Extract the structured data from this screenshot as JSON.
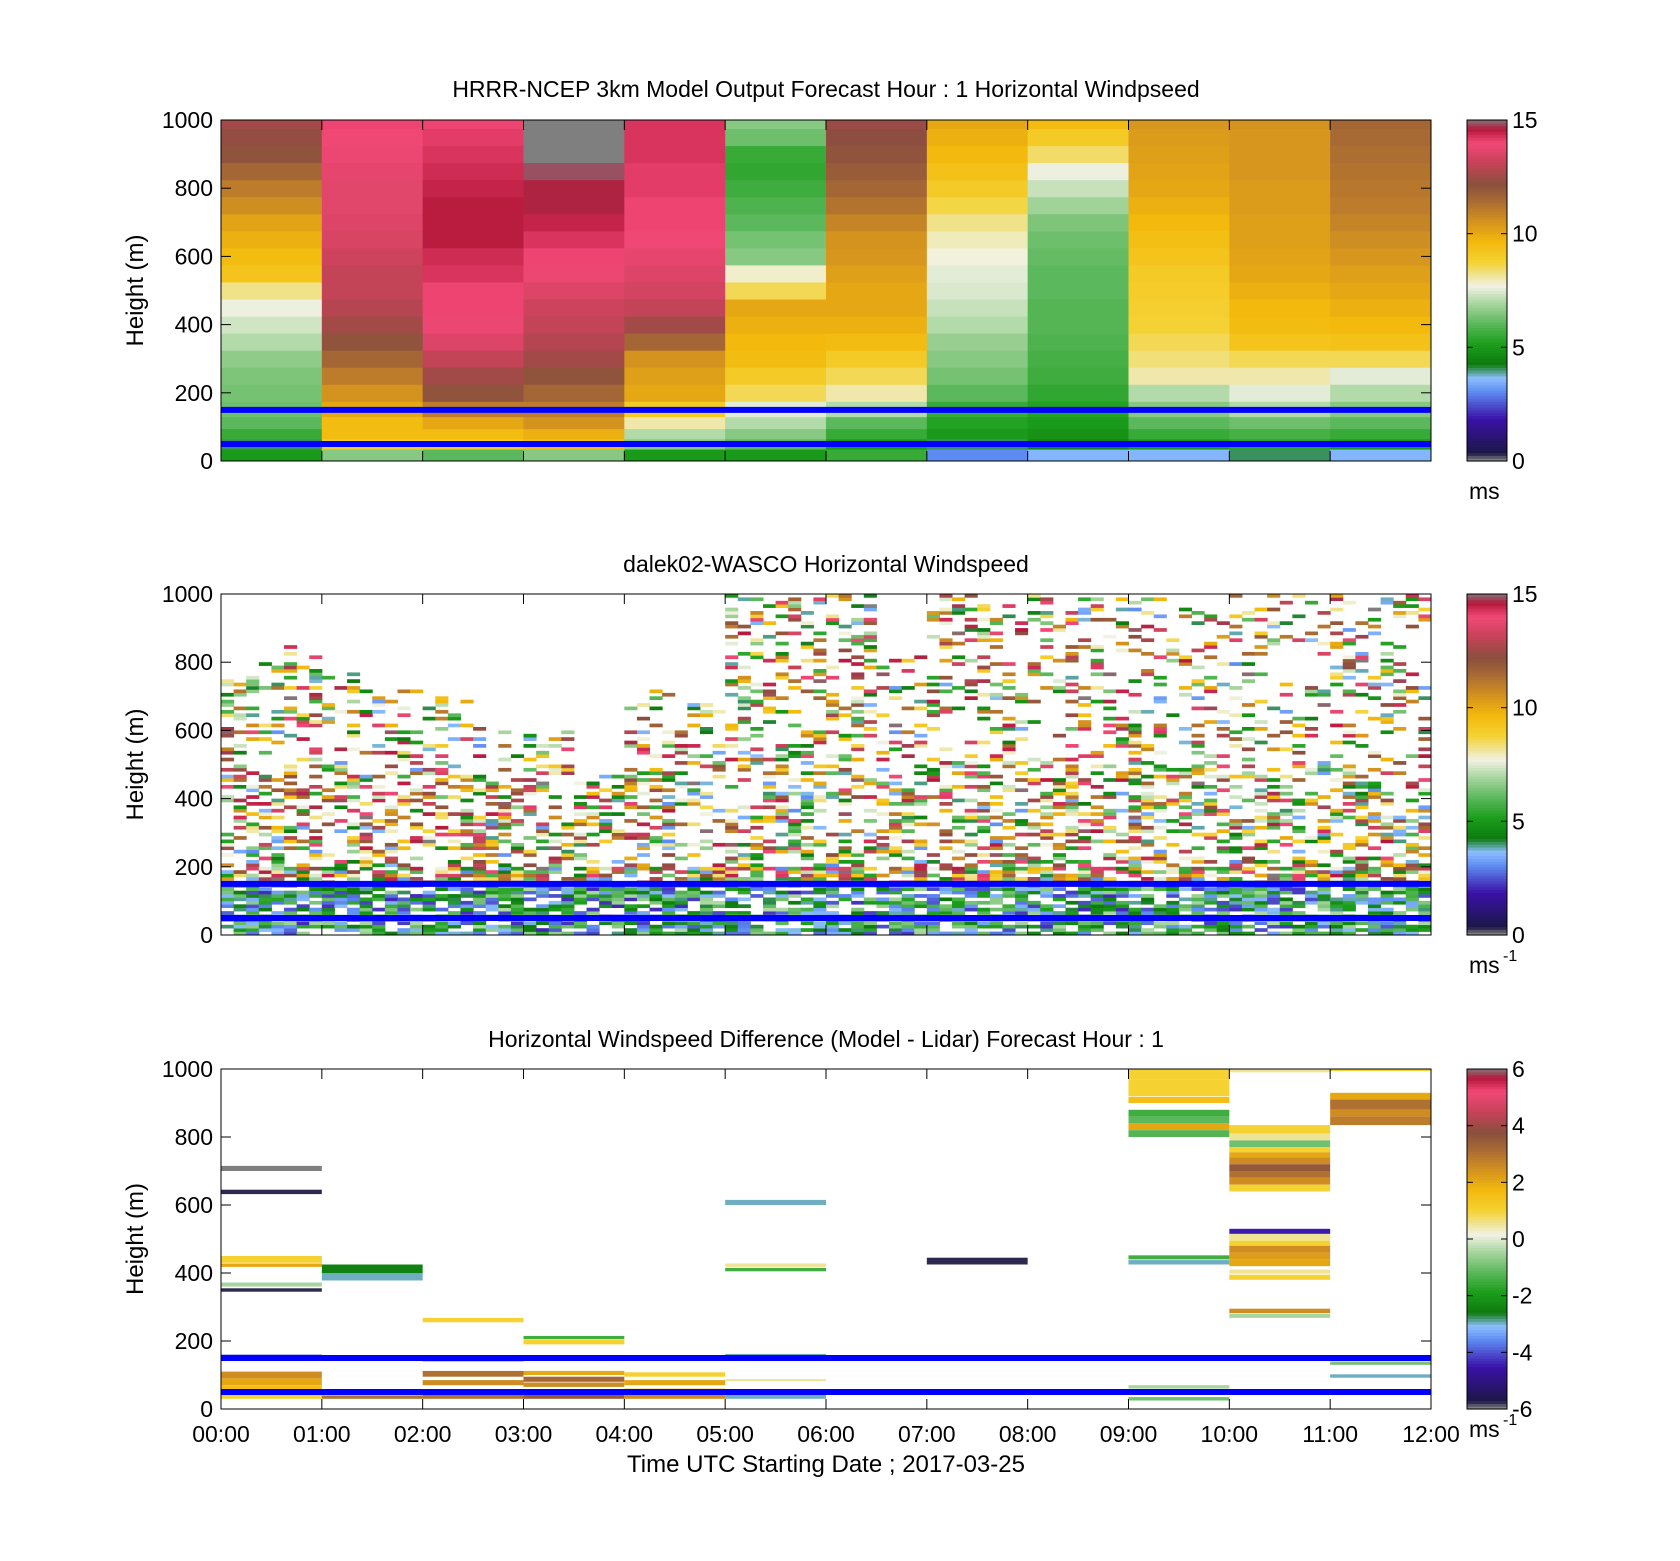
{
  "chart_data": [
    {
      "type": "heatmap",
      "title": "HRRR-NCEP 3km Model Output   Forecast Hour : 1 Horizontal Windpseed",
      "ylabel": "Height (m)",
      "xlabel": "",
      "y_ticks": [
        "0",
        "200",
        "400",
        "600",
        "800",
        "1000"
      ],
      "ylim": [
        0,
        1000
      ],
      "x_ticks": [],
      "xlim_hours": [
        0,
        12
      ],
      "reference_lines_m": [
        150,
        50
      ],
      "reference_line_color": "#0000ff",
      "colorbar": {
        "vmin": 0,
        "vmax": 15,
        "ticks": [
          "0",
          "5",
          "10",
          "15"
        ],
        "unit": "ms",
        "unit_sup": ""
      },
      "heights_m": [
        20,
        50,
        80,
        110,
        150,
        200,
        250,
        300,
        350,
        400,
        450,
        500,
        550,
        600,
        650,
        700,
        750,
        800,
        850,
        900,
        950,
        1000
      ],
      "columns": [
        {
          "hour": 0,
          "values": [
            5,
            4,
            5.5,
            6,
            6.2,
            6.3,
            6.4,
            6.6,
            7,
            7.3,
            7.6,
            8.2,
            9.2,
            9.5,
            9.8,
            10.1,
            10.6,
            11,
            11.5,
            12,
            12.3,
            12.5
          ]
        },
        {
          "hour": 1,
          "values": [
            6.5,
            9,
            9.5,
            9.5,
            10,
            10.5,
            11,
            11.5,
            12,
            12.5,
            12.8,
            13,
            13,
            13.2,
            13.4,
            13.5,
            13.6,
            13.6,
            13.7,
            13.8,
            13.9,
            14
          ]
        },
        {
          "hour": 2,
          "values": [
            6,
            9,
            9.5,
            10,
            11,
            12,
            12.5,
            13,
            13.5,
            13.8,
            14,
            14,
            14.2,
            14.3,
            14.5,
            14.5,
            14.5,
            14.4,
            14.3,
            14.2,
            14.1,
            14
          ]
        },
        {
          "hour": 3,
          "values": [
            6.5,
            9.5,
            9.8,
            10.5,
            11,
            11.5,
            12,
            12.5,
            12.8,
            13,
            13.2,
            13.5,
            13.8,
            14,
            14.2,
            14.4,
            14.6,
            14.6,
            14.8,
            15,
            15.2,
            15.3
          ]
        },
        {
          "hour": 4,
          "values": [
            5,
            6.5,
            7,
            8,
            9,
            10,
            10.2,
            10.5,
            11.5,
            12.5,
            13,
            13.3,
            13.5,
            13.7,
            13.9,
            14,
            14,
            14.1,
            14.1,
            14.2,
            14.2,
            14.2
          ]
        },
        {
          "hour": 5,
          "values": [
            5,
            6,
            6.5,
            7,
            7.5,
            8.5,
            9,
            9.5,
            9.6,
            9.8,
            10,
            8.5,
            7.8,
            6.5,
            6.3,
            6.0,
            5.8,
            5.6,
            5.4,
            5.5,
            6.2,
            6.5
          ]
        },
        {
          "hour": 6,
          "values": [
            5.5,
            5,
            5.5,
            6,
            7,
            8,
            8.5,
            9,
            9.5,
            9.8,
            10,
            10,
            10.2,
            10.4,
            10.5,
            10.8,
            11.2,
            11.5,
            11.8,
            12,
            12.2,
            12.4
          ]
        },
        {
          "hour": 7,
          "values": [
            3,
            4,
            5,
            5.2,
            5.5,
            6,
            6.3,
            6.5,
            6.7,
            7,
            7.2,
            7.4,
            7.5,
            7.7,
            7.9,
            8.2,
            8.6,
            9,
            9.3,
            9.6,
            9.8,
            10
          ]
        },
        {
          "hour": 8,
          "values": [
            3.5,
            4.5,
            4.8,
            5,
            5.2,
            5.4,
            5.6,
            5.7,
            5.8,
            5.9,
            5.9,
            6,
            6,
            6.1,
            6.2,
            6.4,
            6.8,
            7.2,
            7.6,
            8.4,
            9,
            9.5
          ]
        },
        {
          "hour": 9,
          "values": [
            3.5,
            5,
            5.5,
            6,
            6.5,
            7,
            8,
            8.3,
            8.5,
            8.7,
            8.8,
            8.9,
            9,
            9.2,
            9.4,
            9.6,
            9.8,
            10,
            10.1,
            10.2,
            10.3,
            10.4
          ]
        },
        {
          "hour": 10,
          "values": [
            4,
            5.3,
            5.7,
            6.2,
            7,
            7.5,
            8,
            8.5,
            9.2,
            9.5,
            9.6,
            9.8,
            10,
            10.1,
            10.2,
            10.2,
            10.3,
            10.3,
            10.4,
            10.4,
            10.4,
            10.5
          ]
        },
        {
          "hour": 11,
          "values": [
            3.5,
            5,
            5.5,
            6,
            6.5,
            7,
            7.5,
            8.5,
            9.3,
            9.6,
            9.8,
            10,
            10.2,
            10.4,
            10.6,
            10.8,
            11,
            11.1,
            11.2,
            11.3,
            11.4,
            11.5
          ]
        }
      ]
    },
    {
      "type": "heatmap",
      "title": "dalek02-WASCO  Horizontal Windspeed",
      "ylabel": "Height (m)",
      "xlabel": "",
      "y_ticks": [
        "0",
        "200",
        "400",
        "600",
        "800",
        "1000"
      ],
      "ylim": [
        0,
        1000
      ],
      "x_ticks": [],
      "xlim_hours": [
        0,
        12
      ],
      "reference_lines_m": [
        150,
        50
      ],
      "reference_line_color": "#0000ff",
      "colorbar": {
        "vmin": 0,
        "vmax": 15,
        "ticks": [
          "0",
          "5",
          "10",
          "15"
        ],
        "unit": "ms",
        "unit_sup": "-1"
      },
      "observation_coverage_m": [
        {
          "start_hour": 0,
          "top_m": 800,
          "value_range": [
            3,
            15
          ]
        },
        {
          "start_hour": 0.5,
          "top_m": 850,
          "value_range": [
            3,
            15
          ]
        },
        {
          "start_hour": 1,
          "top_m": 780,
          "value_range": [
            3,
            15
          ]
        },
        {
          "start_hour": 1.5,
          "top_m": 720,
          "value_range": [
            3,
            15
          ]
        },
        {
          "start_hour": 2,
          "top_m": 700,
          "value_range": [
            3,
            15
          ]
        },
        {
          "start_hour": 2.5,
          "top_m": 620,
          "value_range": [
            3,
            15
          ]
        },
        {
          "start_hour": 3,
          "top_m": 600,
          "value_range": [
            3,
            15
          ]
        },
        {
          "start_hour": 3.5,
          "top_m": 480,
          "value_range": [
            3,
            15
          ]
        },
        {
          "start_hour": 4,
          "top_m": 720,
          "value_range": [
            3,
            15
          ]
        },
        {
          "start_hour": 4.5,
          "top_m": 680,
          "value_range": [
            3,
            15
          ]
        },
        {
          "start_hour": 5,
          "top_m": 1000,
          "value_range": [
            3,
            15
          ]
        },
        {
          "start_hour": 5.5,
          "top_m": 1000,
          "value_range": [
            3,
            15
          ]
        },
        {
          "start_hour": 6,
          "top_m": 1000,
          "value_range": [
            3,
            15
          ]
        },
        {
          "start_hour": 6.5,
          "top_m": 820,
          "value_range": [
            3,
            15
          ]
        },
        {
          "start_hour": 7,
          "top_m": 1000,
          "value_range": [
            3,
            15
          ]
        },
        {
          "start_hour": 7.5,
          "top_m": 1000,
          "value_range": [
            3,
            15
          ]
        },
        {
          "start_hour": 8,
          "top_m": 1000,
          "value_range": [
            3,
            15
          ]
        },
        {
          "start_hour": 8.5,
          "top_m": 1000,
          "value_range": [
            3,
            15
          ]
        },
        {
          "start_hour": 9,
          "top_m": 1000,
          "value_range": [
            3,
            15
          ]
        },
        {
          "start_hour": 9.5,
          "top_m": 1000,
          "value_range": [
            3,
            15
          ]
        },
        {
          "start_hour": 10,
          "top_m": 1000,
          "value_range": [
            3,
            15
          ]
        },
        {
          "start_hour": 10.5,
          "top_m": 1000,
          "value_range": [
            3,
            15
          ]
        },
        {
          "start_hour": 11,
          "top_m": 1000,
          "value_range": [
            3,
            15
          ]
        },
        {
          "start_hour": 11.5,
          "top_m": 1000,
          "value_range": [
            3,
            15
          ]
        }
      ]
    },
    {
      "type": "heatmap",
      "title": "Horizontal Windspeed Difference (Model - Lidar) Forecast Hour : 1",
      "ylabel": "Height (m)",
      "xlabel": "Time UTC  Starting Date ; 2017-03-25",
      "y_ticks": [
        "0",
        "200",
        "400",
        "600",
        "800",
        "1000"
      ],
      "ylim": [
        0,
        1000
      ],
      "x_ticks": [
        "00:00",
        "01:00",
        "02:00",
        "03:00",
        "04:00",
        "05:00",
        "06:00",
        "07:00",
        "08:00",
        "09:00",
        "10:00",
        "11:00",
        "12:00"
      ],
      "xlim_hours": [
        0,
        12
      ],
      "reference_lines_m": [
        150,
        50
      ],
      "reference_line_color": "#0000ff",
      "colorbar": {
        "vmin": -6,
        "vmax": 6,
        "ticks": [
          "-6",
          "-4",
          "-2",
          "0",
          "2",
          "4",
          "6"
        ],
        "unit": "ms",
        "unit_sup": "-1"
      },
      "segments": [
        {
          "hour": 0,
          "y0": 700,
          "y1": 715,
          "v": -6
        },
        {
          "hour": 0,
          "y0": 632,
          "y1": 645,
          "v": -5.8
        },
        {
          "hour": 0,
          "y0": 430,
          "y1": 450,
          "v": 1
        },
        {
          "hour": 0,
          "y0": 418,
          "y1": 428,
          "v": 2
        },
        {
          "hour": 0,
          "y0": 360,
          "y1": 372,
          "v": -0.5
        },
        {
          "hour": 0,
          "y0": 345,
          "y1": 355,
          "v": -5.8
        },
        {
          "hour": 0,
          "y0": 150,
          "y1": 160,
          "v": -4
        },
        {
          "hour": 0,
          "y0": 90,
          "y1": 110,
          "v": 2.5
        },
        {
          "hour": 0,
          "y0": 70,
          "y1": 90,
          "v": 2
        },
        {
          "hour": 0,
          "y0": 55,
          "y1": 70,
          "v": 1.5
        },
        {
          "hour": 0,
          "y0": 30,
          "y1": 50,
          "v": 1
        },
        {
          "hour": 1,
          "y0": 400,
          "y1": 425,
          "v": -2.5
        },
        {
          "hour": 1,
          "y0": 378,
          "y1": 400,
          "v": -3
        },
        {
          "hour": 1,
          "y0": 30,
          "y1": 40,
          "v": 3
        },
        {
          "hour": 2,
          "y0": 255,
          "y1": 268,
          "v": 1
        },
        {
          "hour": 2,
          "y0": 140,
          "y1": 148,
          "v": 3
        },
        {
          "hour": 2,
          "y0": 95,
          "y1": 112,
          "v": 3
        },
        {
          "hour": 2,
          "y0": 70,
          "y1": 85,
          "v": 2.5
        },
        {
          "hour": 2,
          "y0": 30,
          "y1": 42,
          "v": 3
        },
        {
          "hour": 3,
          "y0": 205,
          "y1": 215,
          "v": -1.5
        },
        {
          "hour": 3,
          "y0": 190,
          "y1": 203,
          "v": 1
        },
        {
          "hour": 3,
          "y0": 100,
          "y1": 112,
          "v": 2
        },
        {
          "hour": 3,
          "y0": 80,
          "y1": 95,
          "v": 3.2
        },
        {
          "hour": 3,
          "y0": 65,
          "y1": 78,
          "v": 2.5
        },
        {
          "hour": 3,
          "y0": 30,
          "y1": 45,
          "v": 3.5
        },
        {
          "hour": 4,
          "y0": 95,
          "y1": 108,
          "v": 1
        },
        {
          "hour": 4,
          "y0": 70,
          "y1": 85,
          "v": 2
        },
        {
          "hour": 4,
          "y0": 45,
          "y1": 60,
          "v": 1.5
        },
        {
          "hour": 4,
          "y0": 30,
          "y1": 42,
          "v": 2.5
        },
        {
          "hour": 5,
          "y0": 600,
          "y1": 615,
          "v": -3
        },
        {
          "hour": 5,
          "y0": 418,
          "y1": 428,
          "v": 0.5
        },
        {
          "hour": 5,
          "y0": 405,
          "y1": 415,
          "v": -1.5
        },
        {
          "hour": 5,
          "y0": 155,
          "y1": 162,
          "v": -3
        },
        {
          "hour": 5,
          "y0": 82,
          "y1": 88,
          "v": 0.5
        },
        {
          "hour": 5,
          "y0": 30,
          "y1": 45,
          "v": -3
        },
        {
          "hour": 7,
          "y0": 425,
          "y1": 445,
          "v": -5.8
        },
        {
          "hour": 9,
          "y0": 970,
          "y1": 1000,
          "v": 1
        },
        {
          "hour": 9,
          "y0": 920,
          "y1": 970,
          "v": 1
        },
        {
          "hour": 9,
          "y0": 900,
          "y1": 918,
          "v": 1.5
        },
        {
          "hour": 9,
          "y0": 860,
          "y1": 880,
          "v": -1.5
        },
        {
          "hour": 9,
          "y0": 840,
          "y1": 860,
          "v": -1.2
        },
        {
          "hour": 9,
          "y0": 820,
          "y1": 840,
          "v": 2
        },
        {
          "hour": 9,
          "y0": 800,
          "y1": 820,
          "v": -1.3
        },
        {
          "hour": 9,
          "y0": 440,
          "y1": 452,
          "v": -1.5
        },
        {
          "hour": 9,
          "y0": 425,
          "y1": 438,
          "v": -3
        },
        {
          "hour": 9,
          "y0": 60,
          "y1": 70,
          "v": -0.5
        },
        {
          "hour": 9,
          "y0": 25,
          "y1": 35,
          "v": -1
        },
        {
          "hour": 10,
          "y0": 990,
          "y1": 1000,
          "v": 0.5
        },
        {
          "hour": 10,
          "y0": 810,
          "y1": 835,
          "v": 1
        },
        {
          "hour": 10,
          "y0": 790,
          "y1": 810,
          "v": 0.5
        },
        {
          "hour": 10,
          "y0": 770,
          "y1": 790,
          "v": -1
        },
        {
          "hour": 10,
          "y0": 755,
          "y1": 770,
          "v": 1
        },
        {
          "hour": 10,
          "y0": 740,
          "y1": 755,
          "v": 2
        },
        {
          "hour": 10,
          "y0": 720,
          "y1": 740,
          "v": 2.5
        },
        {
          "hour": 10,
          "y0": 700,
          "y1": 720,
          "v": 3.5
        },
        {
          "hour": 10,
          "y0": 680,
          "y1": 700,
          "v": 3
        },
        {
          "hour": 10,
          "y0": 660,
          "y1": 680,
          "v": 2.5
        },
        {
          "hour": 10,
          "y0": 640,
          "y1": 660,
          "v": 1
        },
        {
          "hour": 10,
          "y0": 515,
          "y1": 530,
          "v": -4.5
        },
        {
          "hour": 10,
          "y0": 495,
          "y1": 515,
          "v": 0.5
        },
        {
          "hour": 10,
          "y0": 480,
          "y1": 495,
          "v": 1
        },
        {
          "hour": 10,
          "y0": 460,
          "y1": 480,
          "v": 2.5
        },
        {
          "hour": 10,
          "y0": 440,
          "y1": 460,
          "v": 2.2
        },
        {
          "hour": 10,
          "y0": 420,
          "y1": 440,
          "v": 2
        },
        {
          "hour": 10,
          "y0": 398,
          "y1": 410,
          "v": 0.5
        },
        {
          "hour": 10,
          "y0": 380,
          "y1": 395,
          "v": 1
        },
        {
          "hour": 10,
          "y0": 282,
          "y1": 295,
          "v": 2.5
        },
        {
          "hour": 10,
          "y0": 268,
          "y1": 280,
          "v": -0.5
        },
        {
          "hour": 11,
          "y0": 995,
          "y1": 1000,
          "v": 1
        },
        {
          "hour": 11,
          "y0": 910,
          "y1": 930,
          "v": 2
        },
        {
          "hour": 11,
          "y0": 880,
          "y1": 910,
          "v": 3
        },
        {
          "hour": 11,
          "y0": 860,
          "y1": 880,
          "v": 2.5
        },
        {
          "hour": 11,
          "y0": 835,
          "y1": 860,
          "v": 2.8
        },
        {
          "hour": 11,
          "y0": 140,
          "y1": 148,
          "v": -3
        },
        {
          "hour": 11,
          "y0": 130,
          "y1": 138,
          "v": -1
        },
        {
          "hour": 11,
          "y0": 92,
          "y1": 102,
          "v": -3
        }
      ]
    }
  ],
  "colors": {
    "windspeed_colormap": [
      "#7f7f7f",
      "#1c1747",
      "#3b11a8",
      "#5e8bf2",
      "#8cbfff",
      "#0e7a0e",
      "#1b9e1b",
      "#5cb85c",
      "#a9d6a0",
      "#f2f2e4",
      "#efe59a",
      "#f5d233",
      "#f3b90c",
      "#d4921f",
      "#a86a34",
      "#8a4f3e",
      "#c64258",
      "#f24877",
      "#b5183a",
      "#7f7f7f"
    ],
    "reference_line": "#0000ff"
  }
}
